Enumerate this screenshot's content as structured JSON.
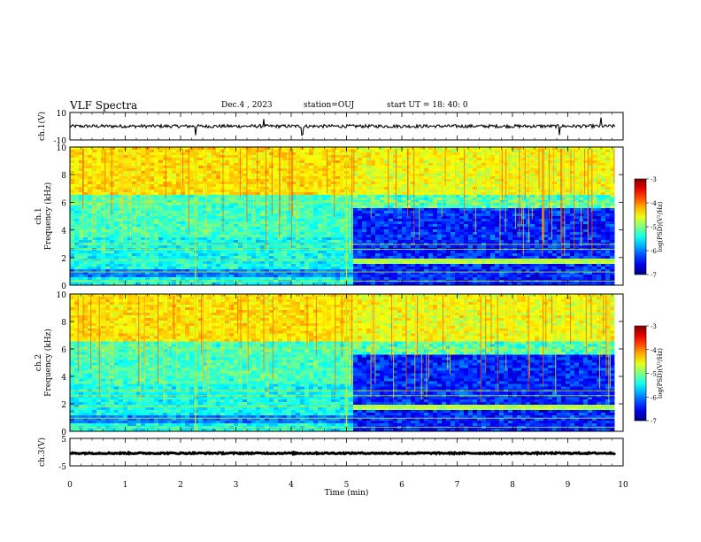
{
  "header": {
    "title": "VLF Spectra",
    "date": "Dec.4 , 2023",
    "station": "station=OUJ",
    "start_ut": "start UT = 18: 40: 0"
  },
  "chart_data": {
    "type": "heatmap",
    "xlabel": "Time (min)",
    "x_ticks": [
      "0",
      "1",
      "2",
      "3",
      "4",
      "5",
      "6",
      "7",
      "8",
      "9",
      "10"
    ],
    "xlim": [
      0,
      10
    ],
    "data_end_min": 9.85,
    "panels": [
      {
        "id": "ch1-waveform",
        "ylabel": "ch.1(V)",
        "ylim": [
          -10,
          10
        ],
        "y_ticks": [
          "10",
          "-10"
        ],
        "trace": {
          "baseline": 0,
          "amplitude": 1.2,
          "spikes_at_min": [
            2.27,
            3.5,
            4.2,
            8.85,
            9.6
          ]
        }
      },
      {
        "id": "ch1-spectrogram",
        "ylabel": "ch.1 Frequency (kHz)",
        "ylim": [
          0,
          10
        ],
        "y_ticks": [
          "0",
          "2",
          "4",
          "6",
          "8",
          "10"
        ],
        "transition_min": 5.1,
        "colorbar": {
          "label": "log(PSD)(V²/Hz)",
          "range": [
            -7,
            -3
          ],
          "ticks": [
            "-3",
            "-4",
            "-5",
            "-6",
            "-7"
          ]
        }
      },
      {
        "id": "ch2-spectrogram",
        "ylabel": "ch.2 Frequency (kHz)",
        "ylim": [
          0,
          10
        ],
        "y_ticks": [
          "0",
          "2",
          "4",
          "6",
          "8",
          "10"
        ],
        "transition_min": 5.1,
        "colorbar": {
          "label": "log(PSD)(V²/Hz)",
          "range": [
            -7,
            -3
          ],
          "ticks": [
            "-3",
            "-4",
            "-5",
            "-6",
            "-7"
          ]
        }
      },
      {
        "id": "ch3-waveform",
        "ylabel": "ch.3(V)",
        "ylim": [
          -5,
          5
        ],
        "y_ticks": [
          "5",
          "-5"
        ],
        "trace": {
          "baseline": -0.4,
          "amplitude": 0.25
        }
      }
    ]
  }
}
